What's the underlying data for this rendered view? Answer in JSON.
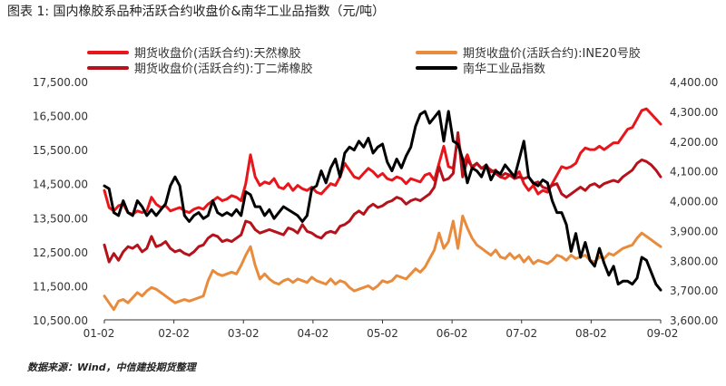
{
  "title": "图表 1: 国内橡胶系品种活跃合约收盘价&南华工业品指数（元/吨）",
  "source": "数据来源：Wind，中信建投期货整理",
  "colors": {
    "rubber": "#e8161b",
    "ine20": "#e88b3c",
    "butadiene": "#b5121b",
    "nanhua": "#000000"
  },
  "chart_data": {
    "type": "line",
    "x_ticks": [
      "01-02",
      "02-02",
      "03-02",
      "04-02",
      "05-02",
      "06-02",
      "07-02",
      "08-02",
      "09-02"
    ],
    "left_axis": {
      "ticks": [
        "17,500.00",
        "16,500.00",
        "15,500.00",
        "14,500.00",
        "13,500.00",
        "12,500.00",
        "11,500.00",
        "10,500.00"
      ],
      "range": [
        10500,
        17500
      ]
    },
    "right_axis": {
      "ticks": [
        "4,400.00",
        "4,300.00",
        "4,200.00",
        "4,100.00",
        "4,000.00",
        "3,900.00",
        "3,800.00",
        "3,700.00",
        "3,600.00"
      ],
      "range": [
        3600,
        4400
      ]
    },
    "legend": [
      "期货收盘价(活跃合约):天然橡胶",
      "期货收盘价(活跃合约):INE20号胶",
      "期货收盘价(活跃合约):丁二烯橡胶",
      "南华工业品指数"
    ],
    "series": [
      {
        "name": "期货收盘价(活跃合约):天然橡胶",
        "axis": "left",
        "color_key": "rubber",
        "values": [
          14300,
          13800,
          13700,
          13850,
          13900,
          13650,
          13600,
          13700,
          13650,
          13700,
          14100,
          13900,
          13800,
          13850,
          13700,
          13750,
          13800,
          13700,
          13650,
          13750,
          13800,
          13750,
          13900,
          14000,
          14100,
          14000,
          14050,
          14150,
          14100,
          14000,
          14500,
          15350,
          14700,
          14450,
          14550,
          14500,
          14650,
          14400,
          14350,
          14500,
          14300,
          14450,
          14350,
          14300,
          14400,
          14250,
          14200,
          14350,
          14500,
          14450,
          14700,
          15100,
          14900,
          14700,
          14650,
          14800,
          14950,
          14850,
          14700,
          14800,
          14650,
          14600,
          14700,
          14650,
          14500,
          14650,
          14600,
          14550,
          14750,
          14800,
          14600,
          15100,
          15600,
          15000,
          14950,
          15900,
          15050,
          15350,
          14950,
          15100,
          14950,
          15050,
          14850,
          14900,
          14700,
          14650,
          14750,
          14700,
          14850,
          14500,
          14300,
          14450,
          14200,
          14300,
          14250,
          14500,
          14750,
          15000,
          14950,
          15000,
          15100,
          15400,
          15550,
          15500,
          15500,
          15600,
          15500,
          15600,
          15700,
          15700,
          15900,
          16100,
          16150,
          16400,
          16650,
          16700,
          16550,
          16400,
          16250
        ]
      },
      {
        "name": "期货收盘价(活跃合约):INE20号胶",
        "axis": "left",
        "color_key": "ine20",
        "values": [
          11200,
          11000,
          10800,
          11050,
          11100,
          11000,
          11150,
          11300,
          11200,
          11350,
          11450,
          11400,
          11300,
          11200,
          11100,
          11000,
          11050,
          11100,
          11050,
          11100,
          11150,
          11200,
          11650,
          11950,
          11850,
          11800,
          11850,
          11900,
          11850,
          12100,
          12400,
          12650,
          12100,
          11700,
          11850,
          11700,
          11600,
          11550,
          11650,
          11700,
          11600,
          11700,
          11650,
          11600,
          11750,
          11650,
          11600,
          11550,
          11700,
          11550,
          11650,
          11600,
          11450,
          11350,
          11400,
          11450,
          11500,
          11400,
          11500,
          11650,
          11600,
          11650,
          11800,
          11750,
          11700,
          11850,
          12000,
          11900,
          12050,
          12300,
          12550,
          13050,
          12600,
          12800,
          13400,
          12600,
          13550,
          13200,
          12900,
          12700,
          12600,
          12500,
          12400,
          12550,
          12350,
          12300,
          12450,
          12300,
          12400,
          12200,
          12350,
          12150,
          12250,
          12200,
          12150,
          12250,
          12400,
          12350,
          12250,
          12400,
          12300,
          12350,
          12400,
          12250,
          12200,
          12350,
          12300,
          12450,
          12400,
          12500,
          12600,
          12650,
          12700,
          12900,
          13050,
          12950,
          12850,
          12750,
          12650
        ]
      },
      {
        "name": "期货收盘价(活跃合约):丁二烯橡胶",
        "axis": "left",
        "color_key": "butadiene",
        "values": [
          12700,
          12200,
          12450,
          12250,
          12500,
          12650,
          12600,
          12700,
          12500,
          12600,
          12950,
          12650,
          12700,
          12800,
          12600,
          12500,
          12550,
          12450,
          12400,
          12500,
          12650,
          12700,
          12900,
          13000,
          12950,
          12800,
          12850,
          12800,
          12900,
          13000,
          13400,
          13350,
          13150,
          13050,
          13100,
          13150,
          13100,
          13050,
          13000,
          13200,
          13150,
          13050,
          13300,
          13100,
          13050,
          12950,
          12900,
          13050,
          13100,
          13050,
          13250,
          13300,
          13400,
          13600,
          13700,
          13600,
          13800,
          13900,
          13800,
          13850,
          13950,
          14000,
          14100,
          14050,
          13900,
          14000,
          14050,
          14000,
          14100,
          14200,
          14400,
          15000,
          14600,
          14650,
          14800,
          16000,
          14700,
          15200,
          15000,
          15100,
          14950,
          15000,
          14900,
          14800,
          14700,
          14800,
          14750,
          14650,
          14700,
          14650,
          14700,
          14500,
          14550,
          14400,
          14350,
          14450,
          14500,
          14200,
          14100,
          14200,
          14300,
          14400,
          14300,
          14450,
          14500,
          14400,
          14500,
          14550,
          14600,
          14550,
          14700,
          14800,
          14900,
          15100,
          15200,
          15150,
          15050,
          14900,
          14700
        ]
      },
      {
        "name": "南华工业品指数",
        "axis": "right",
        "color_key": "nanhua",
        "values": [
          4050,
          4040,
          3960,
          3950,
          4000,
          3960,
          3950,
          4000,
          3980,
          3950,
          3970,
          3950,
          3970,
          3990,
          4050,
          4080,
          4050,
          3950,
          3930,
          3950,
          3960,
          3940,
          3950,
          4000,
          3960,
          3950,
          3960,
          3950,
          3970,
          3950,
          4030,
          4020,
          3980,
          3980,
          3950,
          3970,
          3940,
          3960,
          3980,
          3970,
          3960,
          3950,
          3930,
          3950,
          4040,
          4050,
          4100,
          4060,
          4110,
          4140,
          4080,
          4160,
          4180,
          4170,
          4200,
          4180,
          4210,
          4160,
          4180,
          4190,
          4130,
          4100,
          4140,
          4110,
          4150,
          4180,
          4250,
          4290,
          4300,
          4260,
          4280,
          4300,
          4200,
          4300,
          4200,
          4190,
          4140,
          4060,
          4110,
          4100,
          4080,
          4120,
          4070,
          4100,
          4090,
          4120,
          4100,
          4080,
          4140,
          4200,
          4080,
          4060,
          4050,
          4070,
          4060,
          4000,
          3960,
          3960,
          3920,
          3830,
          3890,
          3810,
          3860,
          3800,
          3780,
          3840,
          3790,
          3750,
          3780,
          3720,
          3730,
          3730,
          3720,
          3740,
          3810,
          3800,
          3760,
          3720,
          3700
        ]
      }
    ]
  }
}
